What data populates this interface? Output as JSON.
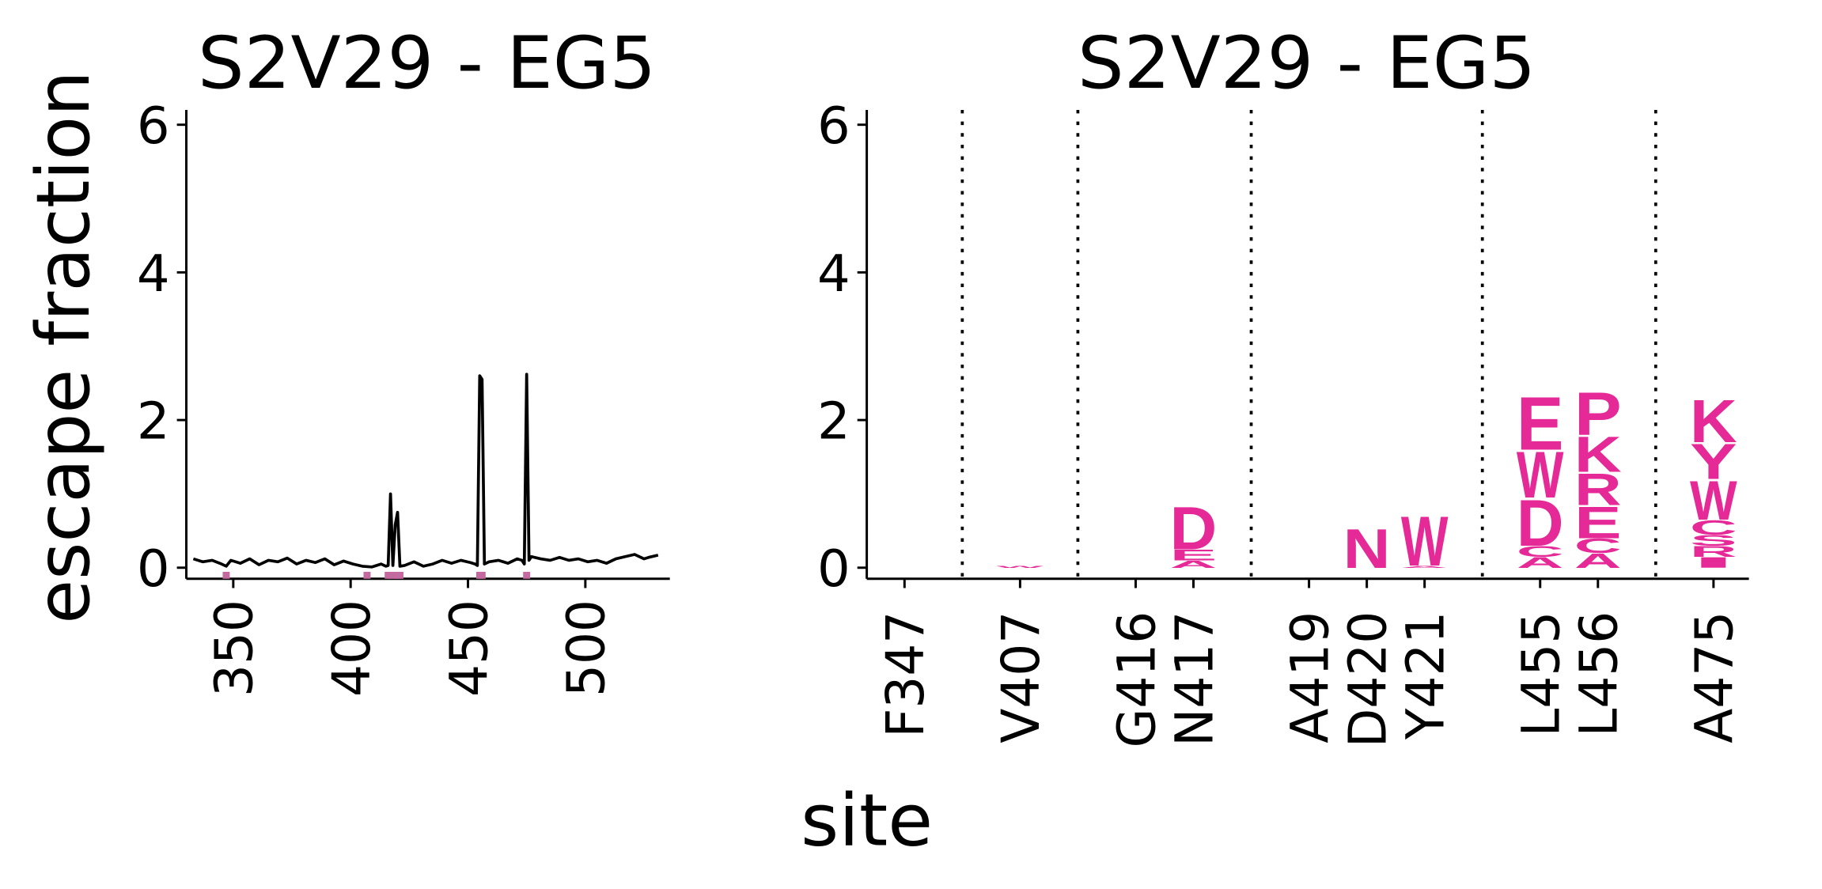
{
  "chart_data": [
    {
      "type": "line",
      "title": "S2V29 - EG5",
      "ylabel": "escape fraction",
      "color": "#000000",
      "highlight_color": "#c46aa0",
      "x": [
        333,
        337,
        341,
        345,
        347,
        349,
        353,
        357,
        361,
        365,
        369,
        373,
        377,
        381,
        385,
        389,
        393,
        397,
        401,
        405,
        409,
        413,
        415,
        416,
        417,
        418,
        419,
        420,
        421,
        423,
        427,
        431,
        435,
        439,
        443,
        447,
        451,
        453,
        454,
        455,
        456,
        457,
        459,
        463,
        467,
        471,
        473,
        474,
        475,
        476,
        477,
        481,
        485,
        489,
        493,
        497,
        501,
        505,
        509,
        513,
        517,
        521,
        525,
        527,
        531
      ],
      "values": [
        0.12,
        0.08,
        0.1,
        0.05,
        0.02,
        0.1,
        0.06,
        0.12,
        0.04,
        0.1,
        0.08,
        0.13,
        0.05,
        0.1,
        0.07,
        0.12,
        0.04,
        0.09,
        0.05,
        0.02,
        0.01,
        0.05,
        0.02,
        0.03,
        1.0,
        0.03,
        0.58,
        0.75,
        0.02,
        0.03,
        0.08,
        0.02,
        0.05,
        0.1,
        0.06,
        0.1,
        0.07,
        0.05,
        0.03,
        2.6,
        2.55,
        0.05,
        0.08,
        0.1,
        0.06,
        0.12,
        0.1,
        0.05,
        2.62,
        0.1,
        0.15,
        0.12,
        0.1,
        0.14,
        0.1,
        0.12,
        0.08,
        0.1,
        0.06,
        0.12,
        0.15,
        0.18,
        0.12,
        0.14,
        0.17
      ],
      "highlight_sites": [
        347,
        407,
        416,
        417,
        419,
        420,
        421,
        455,
        456,
        475
      ],
      "xlim": [
        330,
        536
      ],
      "xticks": [
        350,
        400,
        450,
        500
      ],
      "ylim": [
        -0.15,
        6.2
      ],
      "yticks": [
        0,
        2,
        4,
        6
      ]
    },
    {
      "type": "logo",
      "title": "S2V29 - EG5",
      "xlabel": "site",
      "color": "#e52a97",
      "categories": [
        "F347",
        "V407",
        "G416",
        "N417",
        "A419",
        "D420",
        "Y421",
        "L455",
        "L456",
        "A475"
      ],
      "letters": [
        [],
        [
          {
            "letter": "W",
            "value": 0.03
          }
        ],
        [],
        [
          {
            "letter": "A",
            "value": 0.1
          },
          {
            "letter": "E",
            "value": 0.15
          },
          {
            "letter": "D",
            "value": 0.6
          }
        ],
        [],
        [
          {
            "letter": "N",
            "value": 0.55
          }
        ],
        [
          {
            "letter": "A",
            "value": 0.03
          },
          {
            "letter": "W",
            "value": 0.7
          }
        ],
        [
          {
            "letter": "A",
            "value": 0.15
          },
          {
            "letter": "C",
            "value": 0.15
          },
          {
            "letter": "D",
            "value": 0.65
          },
          {
            "letter": "W",
            "value": 0.65
          },
          {
            "letter": "E",
            "value": 0.75
          }
        ],
        [
          {
            "letter": "A",
            "value": 0.2
          },
          {
            "letter": "C",
            "value": 0.2
          },
          {
            "letter": "E",
            "value": 0.45
          },
          {
            "letter": "R",
            "value": 0.45
          },
          {
            "letter": "K",
            "value": 0.5
          },
          {
            "letter": "P",
            "value": 0.6
          }
        ],
        [
          {
            "letter": "I",
            "value": 0.15
          },
          {
            "letter": "R",
            "value": 0.15
          },
          {
            "letter": "S",
            "value": 0.15
          },
          {
            "letter": "C",
            "value": 0.2
          },
          {
            "letter": "W",
            "value": 0.55
          },
          {
            "letter": "Y",
            "value": 0.5
          },
          {
            "letter": "K",
            "value": 0.6
          }
        ]
      ],
      "ylim": [
        -0.15,
        6.2
      ],
      "yticks": [
        0,
        2,
        4,
        6
      ]
    }
  ]
}
